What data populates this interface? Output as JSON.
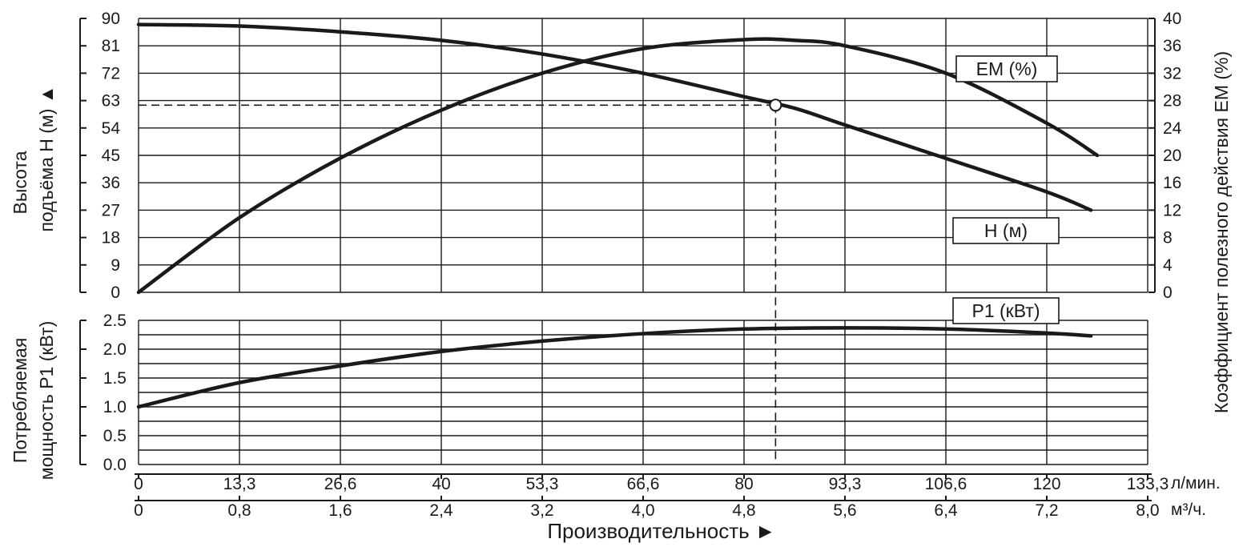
{
  "chart_data": {
    "type": "line",
    "x_axis": {
      "label": "Производительность ►",
      "scale_lpm": {
        "unit": "л/мин.",
        "ticks": [
          "0",
          "13,3",
          "26,6",
          "40",
          "53,3",
          "66,6",
          "80",
          "93,3",
          "106,6",
          "120",
          "133,3"
        ]
      },
      "scale_m3h": {
        "unit": "м³/ч.",
        "ticks": [
          "0",
          "0,8",
          "1,6",
          "2,4",
          "3,2",
          "4,0",
          "4,8",
          "5,6",
          "6,4",
          "7,2",
          "8,0"
        ]
      },
      "range_m3h": [
        0,
        8.0
      ]
    },
    "y_axis_head": {
      "label_line1": "Высота",
      "label_line2": "подъёма Н (м) ▲",
      "ticks": [
        "90",
        "81",
        "72",
        "63",
        "54",
        "45",
        "36",
        "27",
        "18",
        "9",
        "0"
      ],
      "range": [
        0,
        90
      ]
    },
    "y_axis_eff": {
      "label": "Коэффициент полезного действия ЕМ (%)",
      "ticks": [
        "40",
        "36",
        "32",
        "28",
        "24",
        "20",
        "16",
        "12",
        "8",
        "4",
        "0"
      ],
      "range": [
        0,
        40
      ]
    },
    "y_axis_power": {
      "label_line1": "Потребляемая",
      "label_line2": "мощность P1 (кВт)",
      "ticks": [
        "2.5",
        "2.0",
        "1.5",
        "1.0",
        "0.5",
        "0.0"
      ],
      "range": [
        0,
        2.5
      ]
    },
    "series": [
      {
        "name": "ЕМ (%)",
        "axis": "eff",
        "x": [
          0,
          0.8,
          1.6,
          2.4,
          3.2,
          4.0,
          4.8,
          5.2,
          5.6,
          6.4,
          7.2,
          7.6
        ],
        "y": [
          0,
          10.9,
          19.6,
          26.6,
          32.0,
          35.6,
          36.9,
          36.8,
          36.0,
          32.0,
          24.7,
          20.0
        ]
      },
      {
        "name": "Н (м)",
        "axis": "head",
        "x": [
          0,
          0.8,
          1.6,
          2.4,
          3.2,
          4.0,
          4.8,
          5.2,
          5.6,
          6.4,
          7.2,
          7.55
        ],
        "y": [
          88,
          87.5,
          85.6,
          82.8,
          78.3,
          72.0,
          64.3,
          60.5,
          55.0,
          44.0,
          33.0,
          27.0
        ]
      },
      {
        "name": "P1 (кВт)",
        "axis": "power",
        "x": [
          0,
          0.8,
          1.6,
          2.4,
          3.2,
          4.0,
          4.8,
          5.6,
          6.4,
          7.2,
          7.55
        ],
        "y": [
          1.0,
          1.42,
          1.71,
          1.96,
          2.14,
          2.27,
          2.35,
          2.37,
          2.35,
          2.28,
          2.23
        ]
      }
    ],
    "operating_point": {
      "x": 5.05,
      "y": 61.5
    },
    "legend_placement": "labels on curves, right side",
    "grid": true
  }
}
